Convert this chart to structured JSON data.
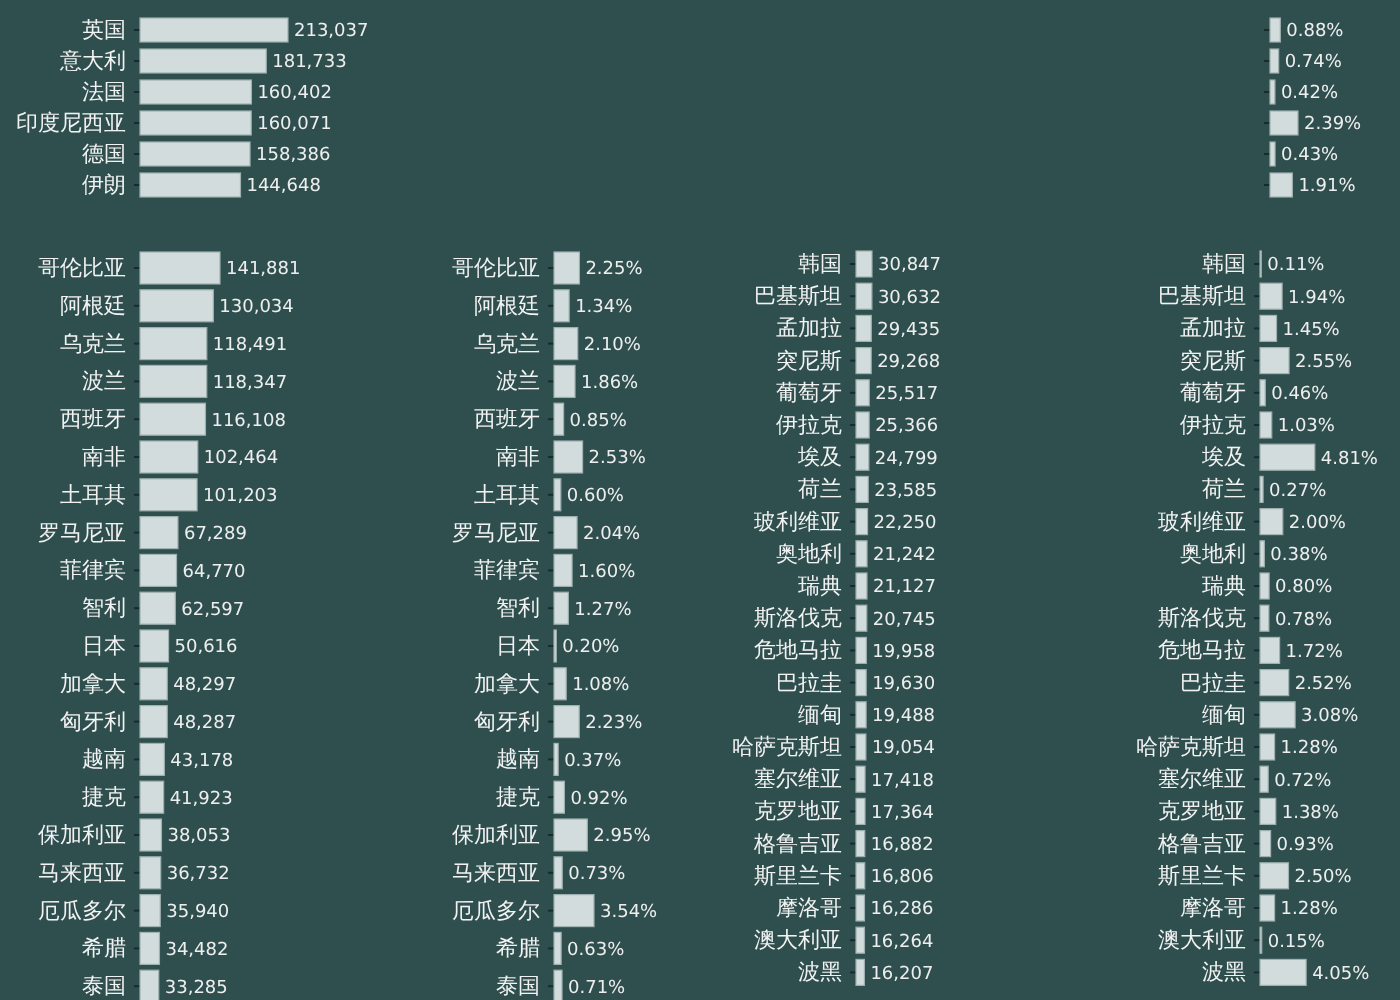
{
  "chart_data": [
    {
      "type": "bar",
      "orientation": "horizontal",
      "color": "#d3dcdc",
      "categories": [
        "英国",
        "意大利",
        "法国",
        "印度尼西亚",
        "德国",
        "伊朗"
      ],
      "values": [
        213037,
        181733,
        160402,
        160071,
        158386,
        144648
      ],
      "value_labels": [
        "213,037",
        "181,733",
        "160,402",
        "160,071",
        "158,386",
        "144,648"
      ]
    },
    {
      "type": "bar",
      "orientation": "horizontal",
      "color": "#d3dcdc",
      "categories": [
        null,
        null,
        null,
        null,
        null,
        null
      ],
      "values": [
        0.88,
        0.74,
        0.42,
        2.39,
        0.43,
        1.91
      ],
      "value_labels": [
        "0.88%",
        "0.74%",
        "0.42%",
        "2.39%",
        "0.43%",
        "1.91%"
      ]
    },
    {
      "type": "bar",
      "orientation": "horizontal",
      "color": "#d3dcdc",
      "categories": [
        "哥伦比亚",
        "阿根廷",
        "乌克兰",
        "波兰",
        "西班牙",
        "南非",
        "土耳其",
        "罗马尼亚",
        "菲律宾",
        "智利",
        "日本",
        "加拿大",
        "匈牙利",
        "越南",
        "捷克",
        "保加利亚",
        "马来西亚",
        "厄瓜多尔",
        "希腊",
        "泰国"
      ],
      "values": [
        141881,
        130034,
        118491,
        118347,
        116108,
        102464,
        101203,
        67289,
        64770,
        62597,
        50616,
        48297,
        48287,
        43178,
        41923,
        38053,
        36732,
        35940,
        34482,
        33285
      ],
      "value_labels": [
        "141,881",
        "130,034",
        "118,491",
        "118,347",
        "116,108",
        "102,464",
        "101,203",
        "67,289",
        "64,770",
        "62,597",
        "50,616",
        "48,297",
        "48,287",
        "43,178",
        "41,923",
        "38,053",
        "36,732",
        "35,940",
        "34,482",
        "33,285"
      ]
    },
    {
      "type": "bar",
      "orientation": "horizontal",
      "color": "#d3dcdc",
      "categories": [
        "哥伦比亚",
        "阿根廷",
        "乌克兰",
        "波兰",
        "西班牙",
        "南非",
        "土耳其",
        "罗马尼亚",
        "菲律宾",
        "智利",
        "日本",
        "加拿大",
        "匈牙利",
        "越南",
        "捷克",
        "保加利亚",
        "马来西亚",
        "厄瓜多尔",
        "希腊",
        "泰国"
      ],
      "values": [
        2.25,
        1.34,
        2.1,
        1.86,
        0.85,
        2.53,
        0.6,
        2.04,
        1.6,
        1.27,
        0.2,
        1.08,
        2.23,
        0.37,
        0.92,
        2.95,
        0.73,
        3.54,
        0.63,
        0.71
      ],
      "value_labels": [
        "2.25%",
        "1.34%",
        "2.10%",
        "1.86%",
        "0.85%",
        "2.53%",
        "0.60%",
        "2.04%",
        "1.60%",
        "1.27%",
        "0.20%",
        "1.08%",
        "2.23%",
        "0.37%",
        "0.92%",
        "2.95%",
        "0.73%",
        "3.54%",
        "0.63%",
        "0.71%"
      ]
    },
    {
      "type": "bar",
      "orientation": "horizontal",
      "color": "#d3dcdc",
      "categories": [
        "韩国",
        "巴基斯坦",
        "孟加拉",
        "突尼斯",
        "葡萄牙",
        "伊拉克",
        "埃及",
        "荷兰",
        "玻利维亚",
        "奥地利",
        "瑞典",
        "斯洛伐克",
        "危地马拉",
        "巴拉圭",
        "缅甸",
        "哈萨克斯坦",
        "塞尔维亚",
        "克罗地亚",
        "格鲁吉亚",
        "斯里兰卡",
        "摩洛哥",
        "澳大利亚",
        "波黑"
      ],
      "values": [
        30847,
        30632,
        29435,
        29268,
        25517,
        25366,
        24799,
        23585,
        22250,
        21242,
        21127,
        20745,
        19958,
        19630,
        19488,
        19054,
        17418,
        17364,
        16882,
        16806,
        16286,
        16264,
        16207
      ],
      "value_labels": [
        "30,847",
        "30,632",
        "29,435",
        "29,268",
        "25,517",
        "25,366",
        "24,799",
        "23,585",
        "22,250",
        "21,242",
        "21,127",
        "20,745",
        "19,958",
        "19,630",
        "19,488",
        "19,054",
        "17,418",
        "17,364",
        "16,882",
        "16,806",
        "16,286",
        "16,264",
        "16,207"
      ]
    },
    {
      "type": "bar",
      "orientation": "horizontal",
      "color": "#d3dcdc",
      "categories": [
        "韩国",
        "巴基斯坦",
        "孟加拉",
        "突尼斯",
        "葡萄牙",
        "伊拉克",
        "埃及",
        "荷兰",
        "玻利维亚",
        "奥地利",
        "瑞典",
        "斯洛伐克",
        "危地马拉",
        "巴拉圭",
        "缅甸",
        "哈萨克斯坦",
        "塞尔维亚",
        "克罗地亚",
        "格鲁吉亚",
        "斯里兰卡",
        "摩洛哥",
        "澳大利亚",
        "波黑"
      ],
      "values": [
        0.11,
        1.94,
        1.45,
        2.55,
        0.46,
        1.03,
        4.81,
        0.27,
        2.0,
        0.38,
        0.8,
        0.78,
        1.72,
        2.52,
        3.08,
        1.28,
        0.72,
        1.38,
        0.93,
        2.5,
        1.28,
        0.15,
        4.05
      ],
      "value_labels": [
        "0.11%",
        "1.94%",
        "1.45%",
        "2.55%",
        "0.46%",
        "1.03%",
        "4.81%",
        "0.27%",
        "2.00%",
        "0.38%",
        "0.80%",
        "0.78%",
        "1.72%",
        "2.52%",
        "3.08%",
        "1.28%",
        "0.72%",
        "1.38%",
        "0.93%",
        "2.50%",
        "1.28%",
        "0.15%",
        "4.05%"
      ]
    }
  ]
}
